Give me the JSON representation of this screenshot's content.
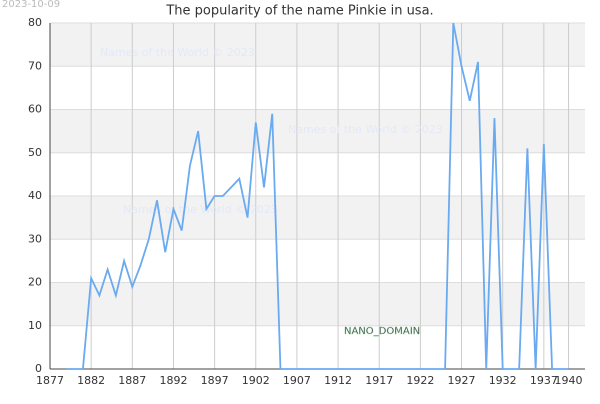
{
  "chart_data": {
    "type": "line",
    "title": "The popularity of the name Pinkie in usa.",
    "date": "2023-10-09",
    "watermark": "Names of the World © 2023",
    "stamp": "NANO_DOMAIN",
    "x": [
      1879,
      1880,
      1881,
      1882,
      1883,
      1884,
      1885,
      1886,
      1887,
      1888,
      1889,
      1890,
      1891,
      1892,
      1893,
      1894,
      1895,
      1896,
      1897,
      1898,
      1899,
      1900,
      1901,
      1902,
      1903,
      1904,
      1905,
      1906,
      1907,
      1908,
      1909,
      1910,
      1911,
      1912,
      1913,
      1914,
      1915,
      1916,
      1917,
      1918,
      1919,
      1920,
      1921,
      1922,
      1923,
      1924,
      1925,
      1926,
      1927,
      1928,
      1929,
      1930,
      1931,
      1932,
      1933,
      1934,
      1935,
      1936,
      1937,
      1938,
      1939,
      1940
    ],
    "series": [
      {
        "name": "Pinkie",
        "color": "#6aaaf0",
        "values": [
          0,
          0,
          0,
          21,
          17,
          23,
          17,
          25,
          19,
          24,
          30,
          39,
          27,
          37,
          32,
          47,
          55,
          37,
          40,
          40,
          42,
          44,
          35,
          57,
          42,
          59,
          0,
          0,
          0,
          0,
          0,
          0,
          0,
          0,
          0,
          0,
          0,
          0,
          0,
          0,
          0,
          0,
          0,
          0,
          0,
          0,
          0,
          80,
          70,
          62,
          71,
          0,
          58,
          0,
          0,
          0,
          51,
          0,
          52,
          0,
          0,
          0
        ]
      }
    ],
    "xlim": [
      1877,
      1942
    ],
    "xticks": [
      1877,
      1882,
      1887,
      1892,
      1897,
      1902,
      1907,
      1912,
      1917,
      1922,
      1927,
      1932,
      1937,
      1940
    ],
    "ylim": [
      0,
      80
    ],
    "yticks": [
      0,
      10,
      20,
      30,
      40,
      50,
      60,
      70,
      80
    ],
    "grid": true
  }
}
